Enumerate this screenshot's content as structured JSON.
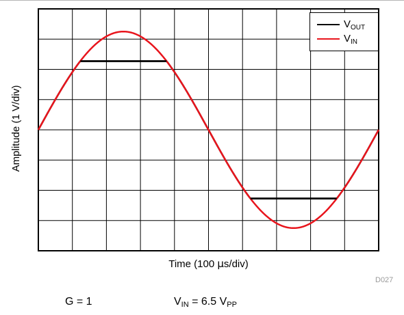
{
  "chart_data": {
    "type": "line",
    "xlabel_prefix": "Time (100 ",
    "xlabel_mu": "μ",
    "xlabel_suffix": "s/div)",
    "ylabel": "Amplitude (1 V/div)",
    "x_divisions": 10,
    "y_divisions": 8,
    "grid": true,
    "legend_position": "top-right",
    "xlim": [
      0,
      10
    ],
    "ylim": [
      -4,
      4
    ],
    "series": [
      {
        "name": "VIN",
        "label_main": "V",
        "label_sub": "IN",
        "color": "#e8141c",
        "waveform": "sine",
        "amplitude": 3.25,
        "period_div": 10,
        "phase_div": 0,
        "offset": 0
      },
      {
        "name": "VOUT",
        "label_main": "V",
        "label_sub": "OUT",
        "color": "#000000",
        "waveform": "clipped-sine",
        "amplitude": 3.25,
        "period_div": 10,
        "phase_div": 0,
        "clip_high": 2.27,
        "clip_low": -2.27
      }
    ]
  },
  "figure_id": "D027",
  "conditions": {
    "gain": "G = 1",
    "vin_main": "V",
    "vin_sub": "IN",
    "vin_mid": " = 6.5 V",
    "vin_unit_sub": "PP"
  }
}
